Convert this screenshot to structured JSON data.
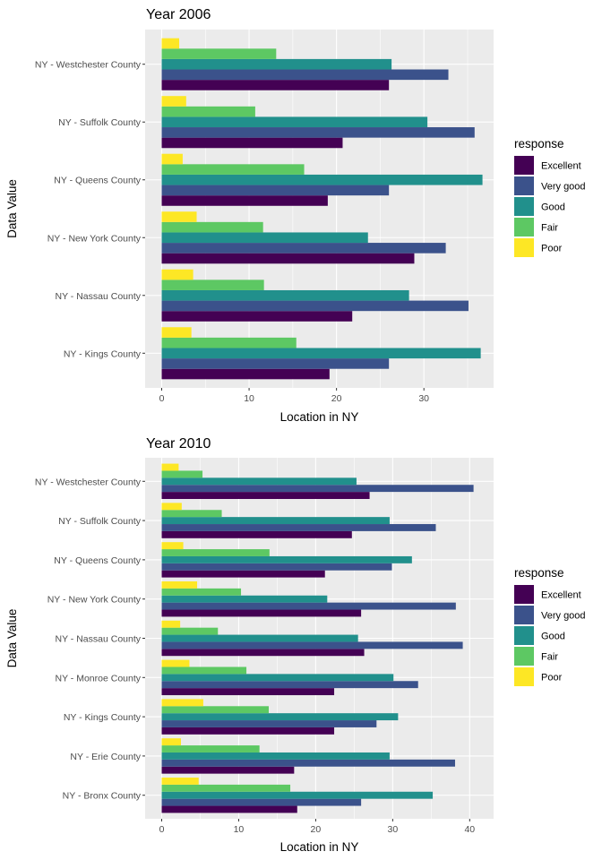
{
  "chart_data": [
    {
      "type": "bar",
      "orientation": "horizontal",
      "title": "Year 2006",
      "xlabel": "Location in NY",
      "ylabel": "Data Value",
      "xlim": [
        0,
        37
      ],
      "xticks": [
        "0",
        "10",
        "20",
        "30"
      ],
      "categories": [
        "NY - Westchester County",
        "NY - Suffolk County",
        "NY - Queens County",
        "NY - New York County",
        "NY - Nassau County",
        "NY - Kings County"
      ],
      "series": [
        {
          "name": "Excellent",
          "color": "#440154",
          "values": [
            26.0,
            20.7,
            19.0,
            28.9,
            21.8,
            19.2
          ]
        },
        {
          "name": "Very good",
          "color": "#3B528B",
          "values": [
            32.8,
            35.8,
            26.0,
            32.5,
            35.1,
            26.0
          ]
        },
        {
          "name": "Good",
          "color": "#21908C",
          "values": [
            26.3,
            30.4,
            36.7,
            23.6,
            28.3,
            36.5
          ]
        },
        {
          "name": "Fair",
          "color": "#5DC863",
          "values": [
            13.1,
            10.7,
            16.3,
            11.6,
            11.7,
            15.4
          ]
        },
        {
          "name": "Poor",
          "color": "#FDE725",
          "values": [
            2.0,
            2.8,
            2.4,
            4.0,
            3.6,
            3.4
          ]
        }
      ],
      "legend": {
        "title": "response",
        "position": "right"
      },
      "grid": true
    },
    {
      "type": "bar",
      "orientation": "horizontal",
      "title": "Year 2010",
      "xlabel": "Location in NY",
      "ylabel": "Data Value",
      "xlim": [
        0,
        42
      ],
      "xticks": [
        "0",
        "10",
        "20",
        "30",
        "40"
      ],
      "categories": [
        "NY - Westchester County",
        "NY - Suffolk County",
        "NY - Queens County",
        "NY - New York County",
        "NY - Nassau County",
        "NY - Monroe County",
        "NY - Kings County",
        "NY - Erie County",
        "NY - Bronx County"
      ],
      "series": [
        {
          "name": "Excellent",
          "color": "#440154",
          "values": [
            27.0,
            24.7,
            21.2,
            25.9,
            26.3,
            22.4,
            22.4,
            17.2,
            17.6
          ]
        },
        {
          "name": "Very good",
          "color": "#3B528B",
          "values": [
            40.5,
            35.6,
            29.9,
            38.2,
            39.1,
            33.3,
            27.9,
            38.1,
            25.9
          ]
        },
        {
          "name": "Good",
          "color": "#21908C",
          "values": [
            25.3,
            29.6,
            32.5,
            21.5,
            25.5,
            30.1,
            30.7,
            29.6,
            35.2
          ]
        },
        {
          "name": "Fair",
          "color": "#5DC863",
          "values": [
            5.3,
            7.8,
            14.0,
            10.3,
            7.3,
            11.0,
            13.9,
            12.7,
            16.7
          ]
        },
        {
          "name": "Poor",
          "color": "#FDE725",
          "values": [
            2.2,
            2.6,
            2.8,
            4.6,
            2.4,
            3.6,
            5.4,
            2.5,
            4.8
          ]
        }
      ],
      "legend": {
        "title": "response",
        "position": "right"
      },
      "grid": true
    }
  ]
}
